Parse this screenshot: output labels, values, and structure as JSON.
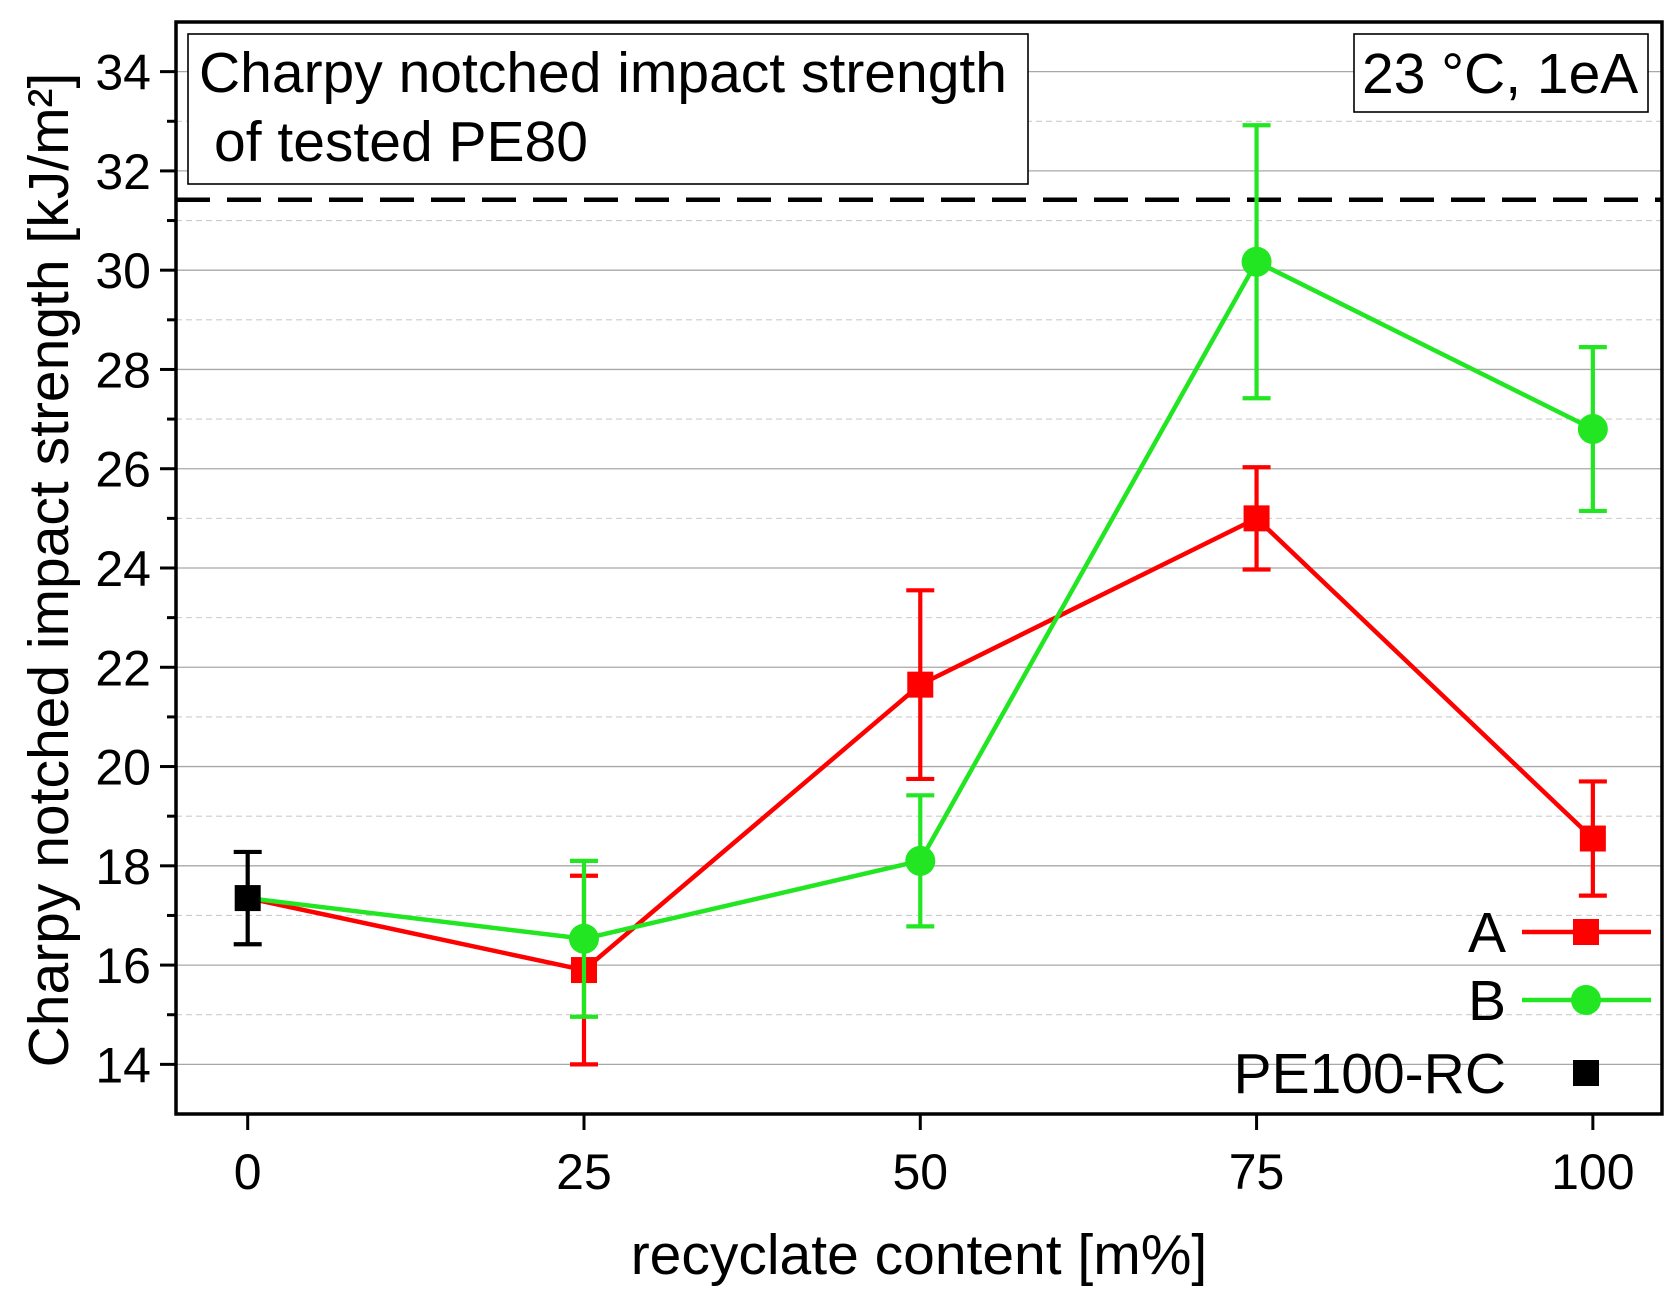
{
  "chart_data": {
    "type": "line",
    "xlabel": "recyclate content [m%]",
    "ylabel": "Charpy notched impact strength [kJ/m²]",
    "xlim": [
      -5.33,
      105.14
    ],
    "ylim": [
      13,
      35
    ],
    "x_ticks": [
      0,
      25,
      50,
      75,
      100
    ],
    "y_ticks": [
      14,
      16,
      18,
      20,
      22,
      24,
      26,
      28,
      30,
      32,
      34
    ],
    "y_minor_ticks": [
      15,
      17,
      19,
      21,
      23,
      25,
      27,
      29,
      31,
      33
    ],
    "grid": {
      "major": true,
      "minor": true,
      "major_color": "#a8a8a8",
      "minor_color": "#cccccc"
    },
    "reference_line": {
      "y": 31.42,
      "style": "dashed",
      "color": "#000000"
    },
    "series": [
      {
        "name": "A",
        "color": "#ff0000",
        "marker": "square",
        "x": [
          25,
          50,
          75,
          100
        ],
        "y": [
          15.9,
          21.65,
          25.0,
          18.55
        ],
        "yerr": [
          1.9,
          1.9,
          1.03,
          1.15
        ],
        "line_from": "PE100-RC",
        "legend_line": true
      },
      {
        "name": "B",
        "color": "#22e622",
        "marker": "circle",
        "x": [
          25,
          50,
          75,
          100
        ],
        "y": [
          16.53,
          18.1,
          30.17,
          26.8
        ],
        "yerr": [
          1.57,
          1.32,
          2.75,
          1.65
        ],
        "line_from": "PE100-RC",
        "legend_line": true
      },
      {
        "name": "PE100-RC",
        "color": "#000000",
        "marker": "square",
        "x": [
          0
        ],
        "y": [
          17.35
        ],
        "yerr": [
          0.93
        ],
        "legend_line": false
      }
    ],
    "annotations": [
      {
        "lines": [
          "Charpy notched impact strength",
          "of tested PE80"
        ],
        "position": "top-left",
        "boxed": true
      },
      {
        "lines": [
          "23 °C, 1eA"
        ],
        "position": "top-right",
        "boxed": true
      }
    ],
    "legend": {
      "position": "bottom-right"
    }
  }
}
